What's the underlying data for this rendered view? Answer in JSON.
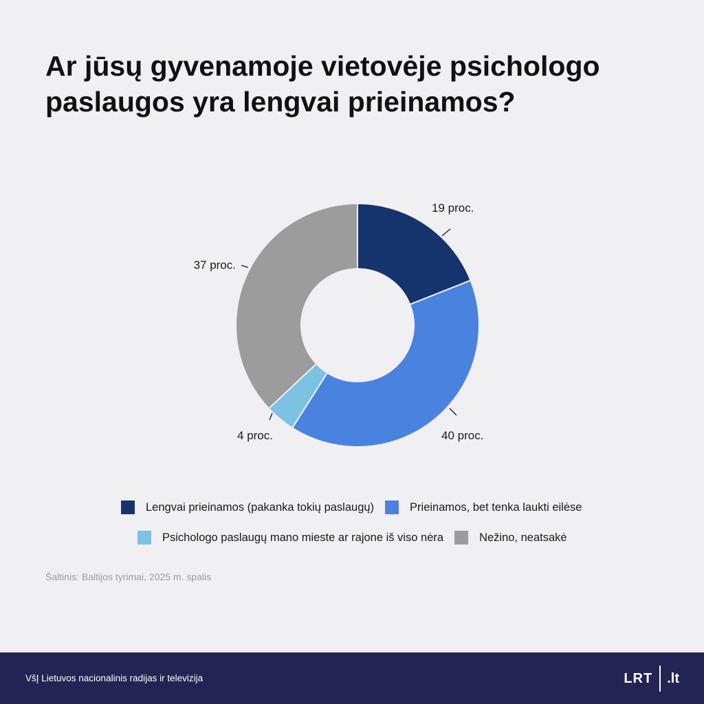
{
  "title": "Ar jūsų gyvenamoje vietovėje psichologo paslaugos yra lengvai prieinamos?",
  "chart_data": {
    "type": "pie",
    "title": "Ar jūsų gyvenamoje vietovėje psichologo paslaugos yra lengvai prieinamos?",
    "categories": [
      "Lengvai prieinamos (pakanka tokių paslaugų)",
      "Prieinamos, bet tenka laukti eilėse",
      "Psichologo paslaugų mano mieste ar rajone iš viso nėra",
      "Nežino, neatsakė"
    ],
    "values": [
      19,
      40,
      4,
      37
    ],
    "labels": [
      "19 proc.",
      "40 proc.",
      "4 proc.",
      "37 proc."
    ],
    "colors": [
      "#15346e",
      "#4a82e0",
      "#7cc2e2",
      "#9c9c9c"
    ],
    "donut": true,
    "legend_position": "bottom"
  },
  "legend": {
    "row1": [
      {
        "label": "Lengvai prieinamos (pakanka tokių paslaugų)",
        "color": "#15346e"
      },
      {
        "label": "Prieinamos, bet tenka laukti eilėse",
        "color": "#4a82e0"
      }
    ],
    "row2": [
      {
        "label": "Psichologo paslaugų mano mieste ar rajone iš viso nėra",
        "color": "#7cc2e2"
      },
      {
        "label": "Nežino, neatsakė",
        "color": "#9c9c9c"
      }
    ]
  },
  "source": "Šaltinis: Baltijos tyrimai, 2025 m. spalis",
  "footer": {
    "org": "VšĮ Lietuvos nacionalinis radijas ir televizija",
    "logo_left": "LRT",
    "logo_right": ".lt"
  }
}
